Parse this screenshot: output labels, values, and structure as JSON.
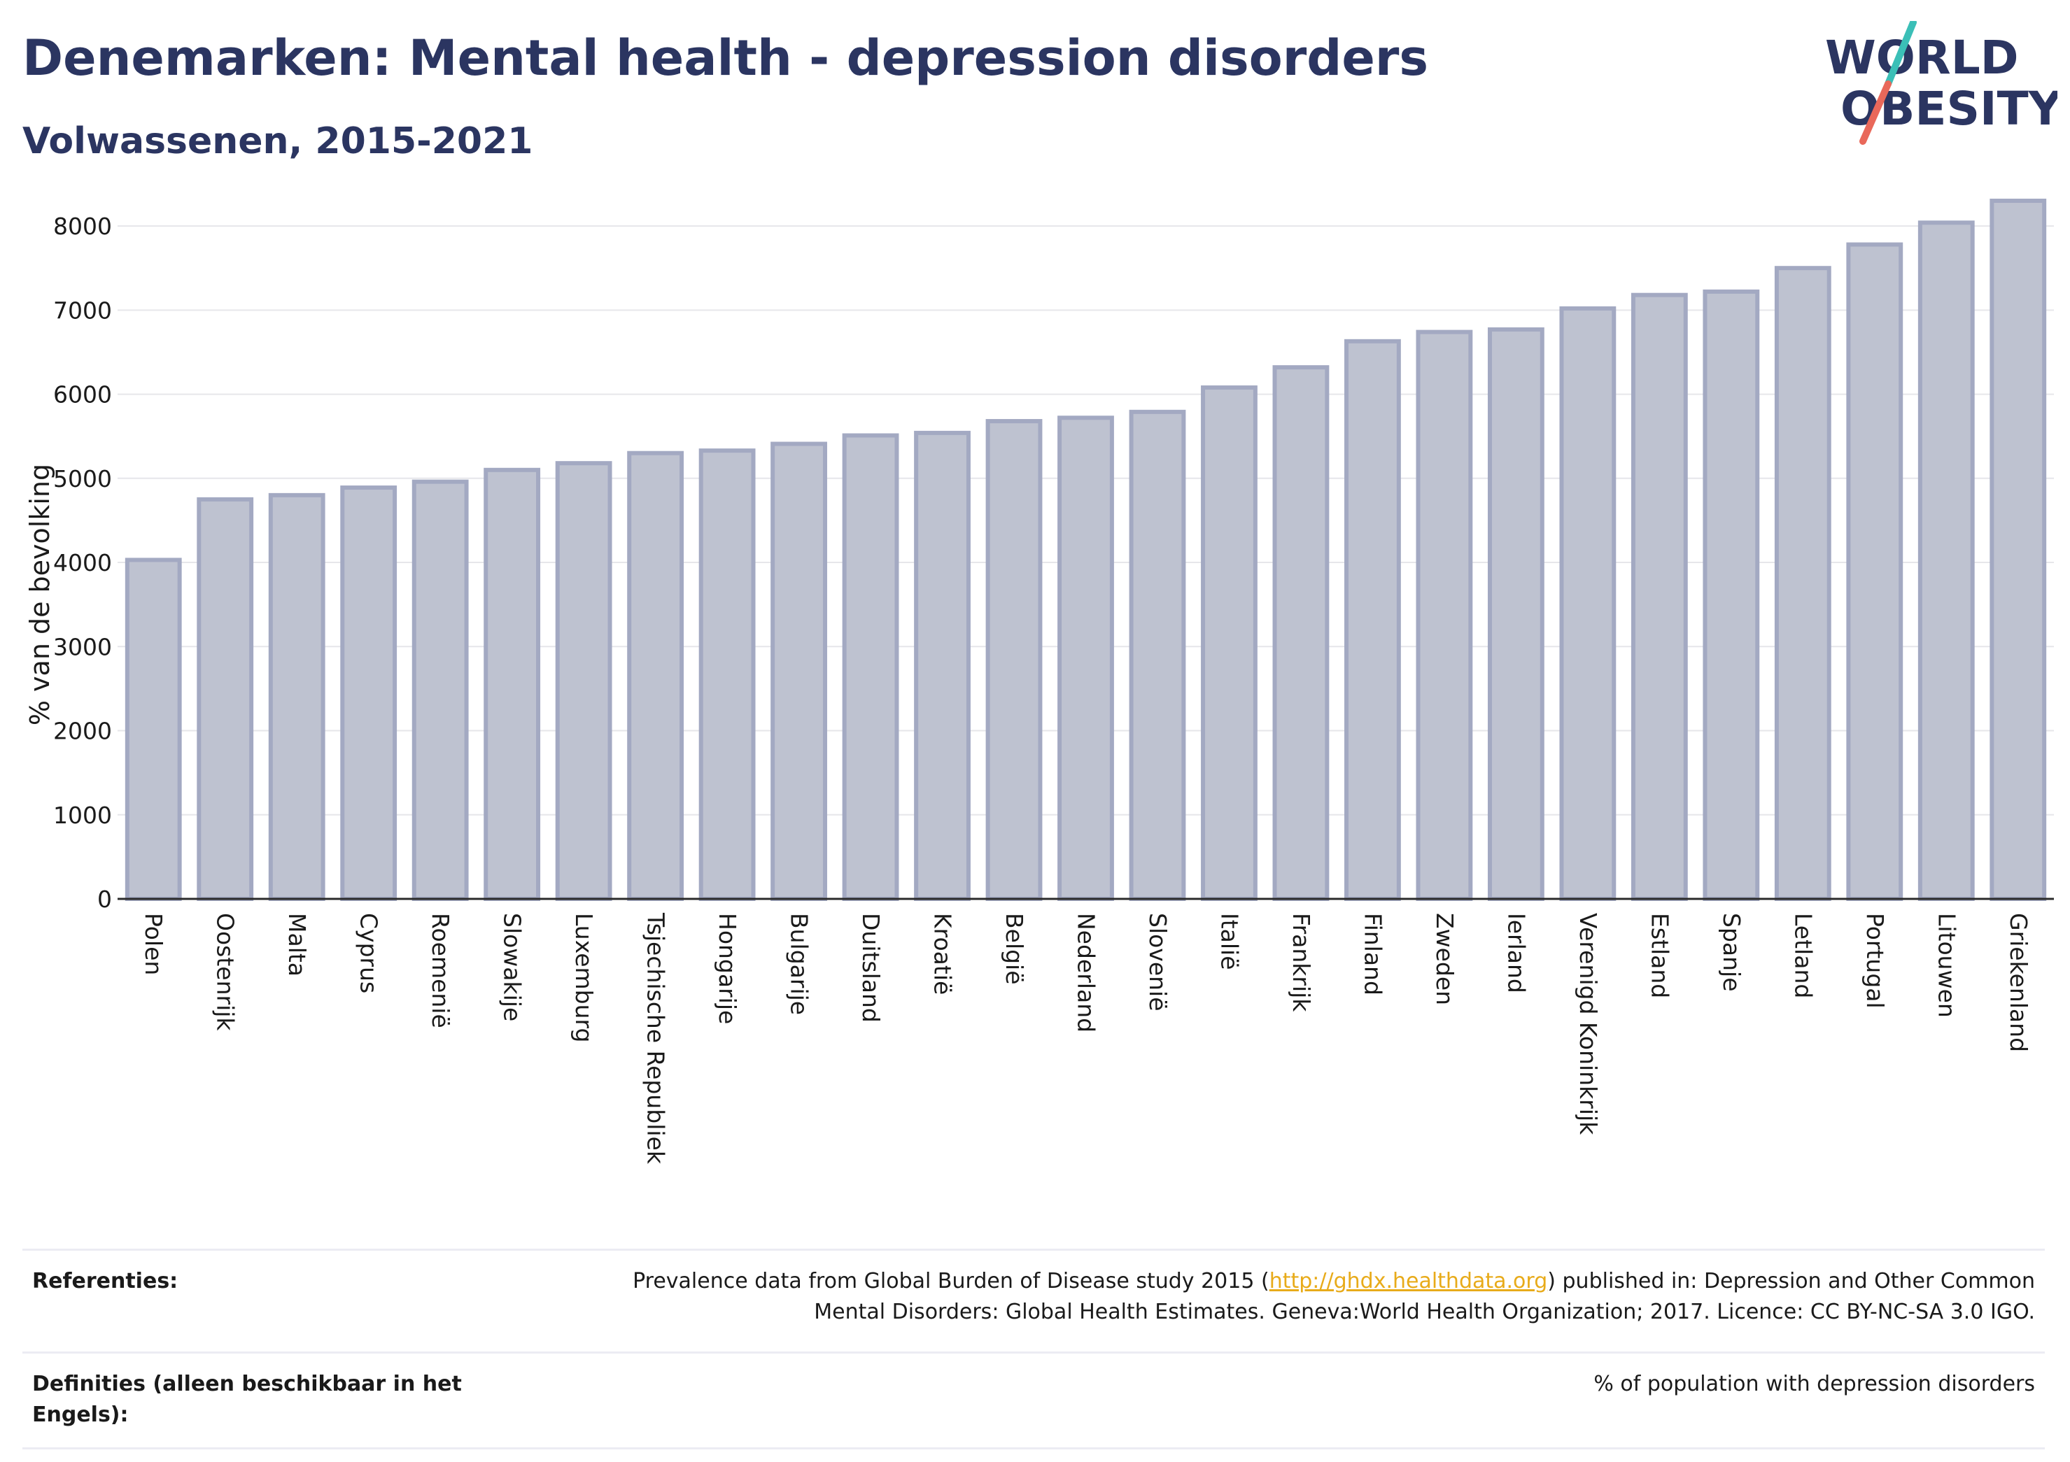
{
  "header": {
    "title": "Denemarken: Mental health - depression disorders",
    "subtitle": "Volwassenen, 2015-2021"
  },
  "logo": {
    "line1": "WORLD",
    "line2": "OBESITY",
    "accent_teal": "#3bbfb7",
    "accent_red": "#e9685a"
  },
  "chart_data": {
    "type": "bar",
    "ylabel": "% van de bevolking",
    "xlabel": "",
    "ylim": [
      0,
      8400
    ],
    "yticks": [
      0,
      1000,
      2000,
      3000,
      4000,
      5000,
      6000,
      7000,
      8000
    ],
    "grid": true,
    "bar_fill": "#bec2d0",
    "bar_stroke": "#a3a9c2",
    "categories": [
      "Polen",
      "Oostenrijk",
      "Malta",
      "Cyprus",
      "Roemenië",
      "Slowakije",
      "Luxemburg",
      "Tsjechische Republiek",
      "Hongarije",
      "Bulgarije",
      "Duitsland",
      "Kroatië",
      "België",
      "Nederland",
      "Slovenië",
      "Italië",
      "Frankrijk",
      "Finland",
      "Zweden",
      "Ierland",
      "Verenigd Koninkrijk",
      "Estland",
      "Spanje",
      "Letland",
      "Portugal",
      "Litouwen",
      "Griekenland"
    ],
    "values": [
      4030,
      4750,
      4800,
      4890,
      4960,
      5100,
      5180,
      5300,
      5330,
      5410,
      5510,
      5540,
      5680,
      5720,
      5790,
      6080,
      6320,
      6630,
      6740,
      6770,
      7020,
      7180,
      7220,
      7500,
      7780,
      8040,
      8300
    ]
  },
  "references": {
    "ref_label": "Referenties:",
    "ref_text_before": "Prevalence data from Global Burden of Disease study 2015 (",
    "ref_link": "http://ghdx.healthdata.org",
    "ref_text_line1_after": ") published in: Depression and Other Common",
    "ref_text_line2": "Mental Disorders: Global Health Estimates. Geneva:World Health Organization; 2017. Licence: CC BY-NC-SA 3.0 IGO.",
    "def_label": "Definities (alleen beschikbaar in het Engels):",
    "def_text": "% of population with depression disorders"
  }
}
